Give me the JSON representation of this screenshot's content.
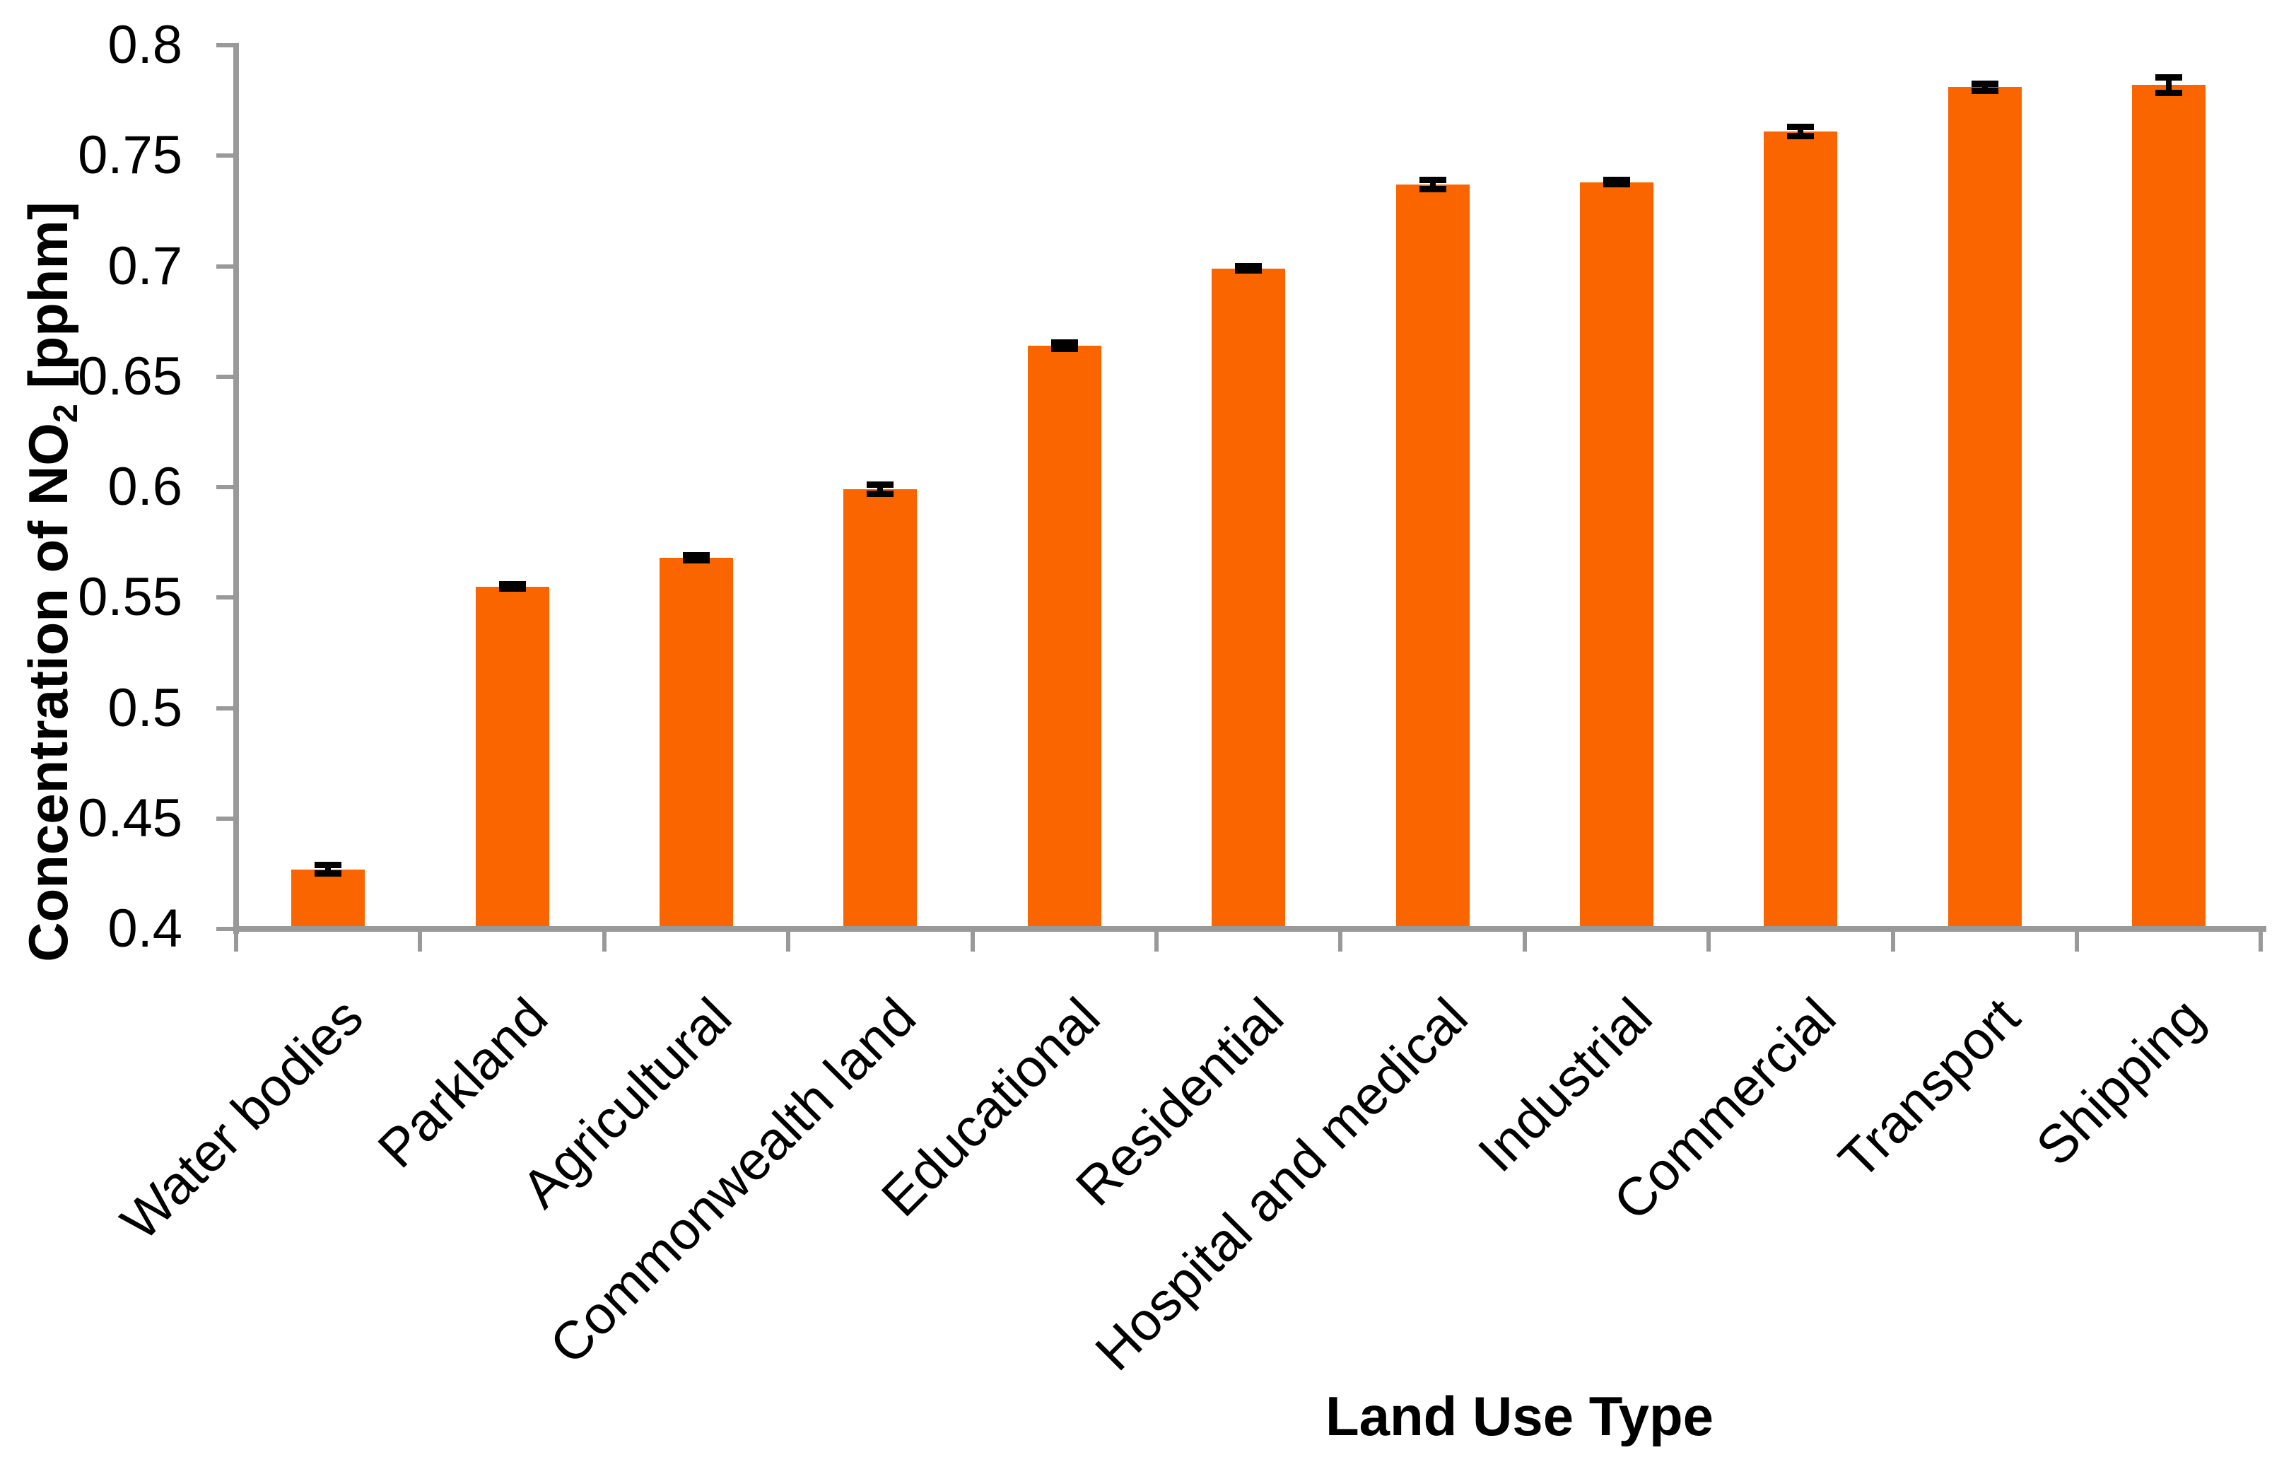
{
  "chart_data": {
    "type": "bar",
    "title": "",
    "xlabel": "Land Use Type",
    "ylabel": "Concentration of NO₂ [pphm]",
    "ylabel_parts": {
      "prefix": "Concentration of NO",
      "subscript": "2",
      "suffix": " [pphm]"
    },
    "categories": [
      "Water bodies",
      "Parkland",
      "Agricultural",
      "Commonwealth land",
      "Educational",
      "Residential",
      "Hospital and medical",
      "Industrial",
      "Commercial",
      "Transport",
      "Shipping"
    ],
    "values": [
      0.427,
      0.555,
      0.568,
      0.599,
      0.664,
      0.699,
      0.737,
      0.738,
      0.761,
      0.781,
      0.782
    ],
    "errors": [
      0.002,
      0.001,
      0.001,
      0.002,
      0.0015,
      0.001,
      0.002,
      0.001,
      0.002,
      0.0015,
      0.0035
    ],
    "ylim": [
      0.4,
      0.8
    ],
    "ytick_step": 0.05,
    "yticks": [
      0.4,
      0.45,
      0.5,
      0.55,
      0.6,
      0.65,
      0.7,
      0.75,
      0.8
    ],
    "ytick_labels": [
      "0.4",
      "0.45",
      "0.5",
      "0.55",
      "0.6",
      "0.65",
      "0.7",
      "0.75",
      "0.8"
    ],
    "xtick_rotation_deg": 45,
    "grid": false,
    "legend": "none",
    "bar_color": "#FB6500",
    "axis_color": "#999999",
    "error_bar_color": "#000000",
    "background_color": "#FFFFFF"
  }
}
